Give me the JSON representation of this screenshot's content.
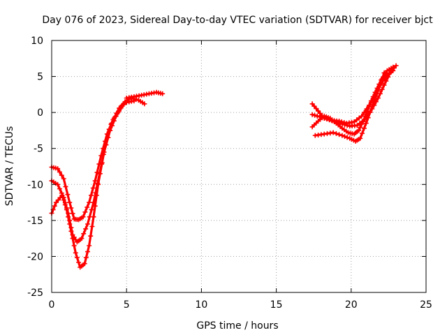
{
  "chart_data": {
    "type": "scatter",
    "title": "Day 076 of 2023, Sidereal Day-to-day VTEC variation (SDTVAR) for receiver bjct",
    "xlabel": "GPS time / hours",
    "ylabel": "SDTVAR / TECUs",
    "xlim": [
      0,
      25
    ],
    "ylim": [
      -25,
      10
    ],
    "xticks": [
      0,
      5,
      10,
      15,
      20,
      25
    ],
    "yticks": [
      -25,
      -20,
      -15,
      -10,
      -5,
      0,
      5,
      10
    ],
    "xtick_labels": [
      "0",
      "5",
      "10",
      "15",
      "20",
      "25"
    ],
    "ytick_labels": [
      "-25",
      "-20",
      "-15",
      "-10",
      "-5",
      "0",
      "5",
      "10"
    ],
    "grid": true,
    "legend": "none",
    "marker": "plus",
    "color": "#ff0000",
    "series": [
      {
        "x": [
          0.0,
          0.4,
          0.8,
          1.2,
          1.5,
          1.8,
          2.1,
          2.5,
          2.9,
          3.3,
          3.7,
          4.1,
          4.5,
          4.9,
          5.3,
          5.8,
          6.2
        ],
        "y": [
          -7.6,
          -7.8,
          -9.2,
          -12.5,
          -14.8,
          -14.9,
          -14.5,
          -12.5,
          -9.5,
          -6.0,
          -3.0,
          -1.0,
          0.2,
          1.5,
          2.0,
          1.7,
          1.2
        ]
      },
      {
        "x": [
          0.0,
          0.4,
          0.8,
          1.1,
          1.4,
          1.7,
          2.0,
          2.4,
          2.8,
          3.2,
          3.6,
          4.0,
          4.5,
          5.0,
          5.5
        ],
        "y": [
          -9.5,
          -10.0,
          -11.8,
          -14.0,
          -17.0,
          -18.0,
          -17.5,
          -15.5,
          -12.5,
          -8.5,
          -4.5,
          -1.5,
          0.6,
          1.4,
          1.6
        ]
      },
      {
        "x": [
          0.0,
          0.3,
          0.7,
          1.0,
          1.3,
          1.6,
          1.9,
          2.2,
          2.5,
          2.8,
          3.1,
          3.5,
          3.9,
          4.3,
          4.7,
          5.0
        ],
        "y": [
          -14.0,
          -12.5,
          -11.5,
          -13.5,
          -16.5,
          -19.5,
          -21.5,
          -21.0,
          -18.5,
          -14.5,
          -10.0,
          -5.5,
          -2.5,
          -0.5,
          1.0,
          1.6
        ]
      },
      {
        "x": [
          5.0,
          5.5,
          6.0,
          6.5,
          7.0,
          7.4
        ],
        "y": [
          2.0,
          2.2,
          2.4,
          2.6,
          2.8,
          2.6
        ]
      },
      {
        "x": [
          17.4,
          17.8,
          18.2,
          18.7,
          19.2,
          19.7,
          20.2,
          20.7,
          21.2,
          21.6,
          22.0,
          22.4,
          22.8
        ],
        "y": [
          1.2,
          0.2,
          -0.8,
          -1.1,
          -1.2,
          -1.5,
          -1.3,
          -0.5,
          1.0,
          2.8,
          4.5,
          5.8,
          6.3
        ]
      },
      {
        "x": [
          17.4,
          17.9,
          18.4,
          18.9,
          19.4,
          19.9,
          20.4,
          20.9,
          21.4,
          21.8,
          22.2,
          22.6,
          23.0
        ],
        "y": [
          -0.3,
          -0.6,
          -0.9,
          -1.3,
          -1.6,
          -1.9,
          -1.8,
          -1.0,
          0.5,
          2.0,
          3.8,
          5.5,
          6.5
        ]
      },
      {
        "x": [
          17.4,
          17.8,
          18.2,
          18.6,
          19.0,
          19.4,
          19.8,
          20.2,
          20.5,
          20.8,
          21.2,
          21.6,
          22.0,
          22.4,
          22.8
        ],
        "y": [
          -2.0,
          -1.2,
          -0.5,
          -0.8,
          -1.5,
          -2.2,
          -2.8,
          -3.0,
          -2.5,
          -1.2,
          0.8,
          2.5,
          4.0,
          5.2,
          5.8
        ]
      },
      {
        "x": [
          17.6,
          18.2,
          18.8,
          19.4,
          19.9,
          20.3,
          20.6,
          21.0,
          21.4,
          21.8,
          22.2
        ],
        "y": [
          -3.2,
          -3.0,
          -2.8,
          -3.2,
          -3.6,
          -4.0,
          -3.6,
          -1.5,
          0.8,
          3.0,
          5.5
        ]
      }
    ]
  }
}
